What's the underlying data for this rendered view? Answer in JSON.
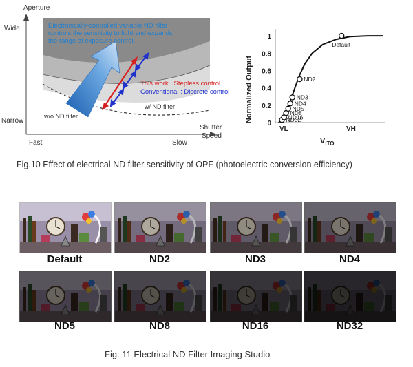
{
  "fig10_left": {
    "y_axis_title": "Aperture",
    "y_top": "Wide",
    "y_bottom": "Narrow",
    "x_axis_title_1": "Shutter",
    "x_axis_title_2": "Speed",
    "x_left": "Fast",
    "x_right": "Slow",
    "annot_line1": "Electronically-controlled variable ND filter",
    "annot_line2": "controls the sensitivity to light and expands",
    "annot_line3": "the range of exposure control.",
    "this_work": "This work : Stepless control",
    "conventional": "Conventional : Discrete control",
    "with_nd": "w/ ND filter",
    "without_nd": "w/o ND filter",
    "colors": {
      "annotation": "#1f7fd0",
      "this_work": "#d62020",
      "conventional": "#2233cc"
    }
  },
  "chart_data": {
    "type": "line",
    "ylabel": "Normalized Output",
    "xlabel_main": "V",
    "xlabel_sub": "ITO",
    "x_tick_labels": [
      "VL",
      "VH"
    ],
    "yticks": [
      0,
      0.2,
      0.4,
      0.6,
      0.8,
      1
    ],
    "ylim": [
      0,
      1.08
    ],
    "xlim": [
      0,
      1
    ],
    "grid": false,
    "x": [
      0.0,
      0.04,
      0.08,
      0.12,
      0.16,
      0.2,
      0.25,
      0.32,
      0.42,
      0.55,
      0.68,
      0.85,
      1.0
    ],
    "y": [
      0.0,
      0.07,
      0.16,
      0.28,
      0.42,
      0.55,
      0.68,
      0.8,
      0.9,
      0.96,
      0.99,
      1.0,
      1.0
    ],
    "points": [
      {
        "label": "ND32",
        "x": 0.03,
        "y": 0.03
      },
      {
        "label": "ND16",
        "x": 0.05,
        "y": 0.06
      },
      {
        "label": "ND8",
        "x": 0.07,
        "y": 0.11
      },
      {
        "label": "ND5",
        "x": 0.09,
        "y": 0.16
      },
      {
        "label": "ND4",
        "x": 0.11,
        "y": 0.22
      },
      {
        "label": "ND3",
        "x": 0.13,
        "y": 0.29
      },
      {
        "label": "ND2",
        "x": 0.2,
        "y": 0.5
      },
      {
        "label": "Default",
        "x": 0.6,
        "y": 1.0
      }
    ]
  },
  "fig10_caption": "Fig.10 Effect of electrical ND filter    sensitivity of OPF (photoelectric conversion efficiency)",
  "fig11": {
    "images": [
      {
        "label": "Default",
        "brightness": 1.0
      },
      {
        "label": "ND2",
        "brightness": 0.75
      },
      {
        "label": "ND3",
        "brightness": 0.62
      },
      {
        "label": "ND4",
        "brightness": 0.52
      },
      {
        "label": "ND5",
        "brightness": 0.44
      },
      {
        "label": "ND8",
        "brightness": 0.36
      },
      {
        "label": "ND16",
        "brightness": 0.27
      },
      {
        "label": "ND32",
        "brightness": 0.2
      }
    ],
    "caption": "Fig. 11 Electrical ND Filter Imaging    Studio"
  }
}
